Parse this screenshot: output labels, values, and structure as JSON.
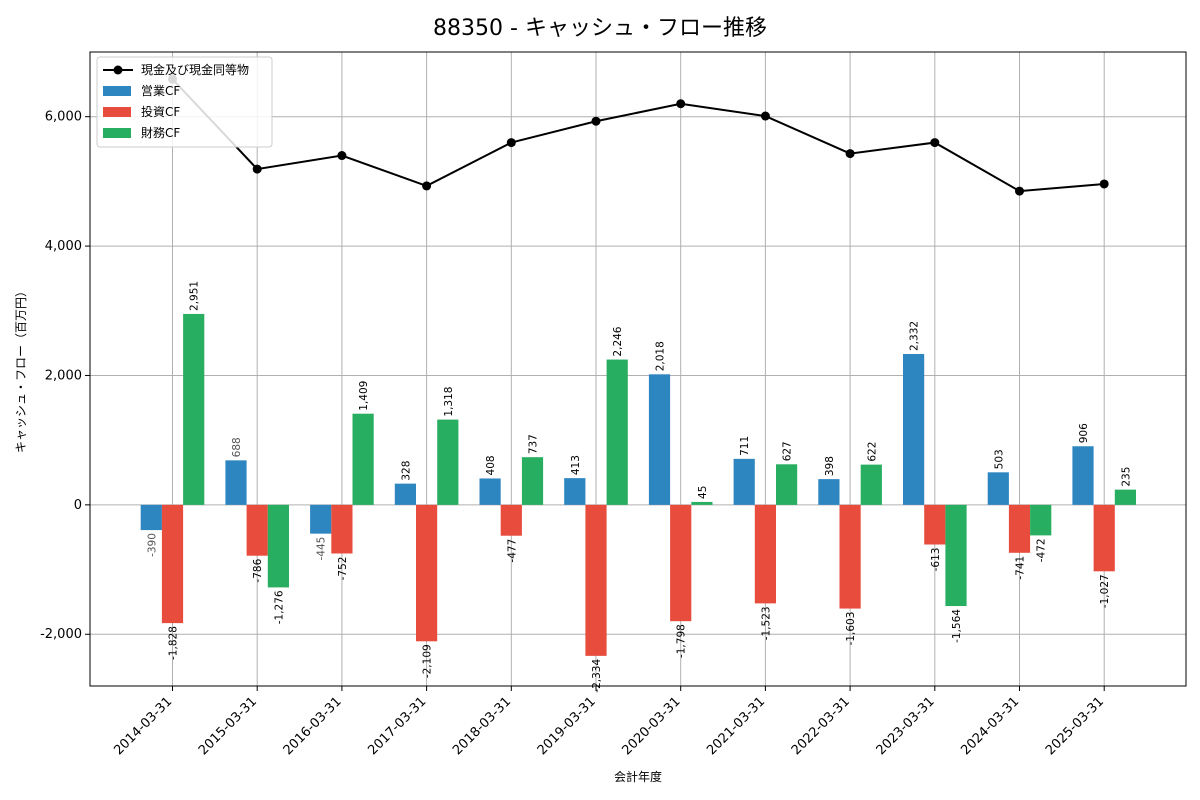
{
  "chart_data": {
    "type": "bar",
    "title": "88350 - キャッシュ・フロー推移",
    "xlabel": "会計年度",
    "ylabel": "キャッシュ・フロー（百万円）",
    "ylim": [
      -2800,
      7000
    ],
    "yticks": [
      -2000,
      0,
      2000,
      4000,
      6000
    ],
    "ytick_labels": [
      "-2,000",
      "0",
      "2,000",
      "4,000",
      "6,000"
    ],
    "grid": true,
    "legend_position": "top-left",
    "categories": [
      "2014-03-31",
      "2015-03-31",
      "2016-03-31",
      "2017-03-31",
      "2018-03-31",
      "2019-03-31",
      "2020-03-31",
      "2021-03-31",
      "2022-03-31",
      "2023-03-31",
      "2024-03-31",
      "2025-03-31"
    ],
    "series": [
      {
        "name": "営業CF",
        "kind": "bar",
        "color": "#2e86c1",
        "values": [
          -390,
          688,
          -445,
          328,
          408,
          413,
          2018,
          711,
          398,
          2332,
          503,
          906
        ],
        "labels": [
          "-390",
          "688",
          "-445",
          "328",
          "408",
          "413",
          "2,018",
          "711",
          "398",
          "2,332",
          "503",
          "906"
        ]
      },
      {
        "name": "投資CF",
        "kind": "bar",
        "color": "#e74c3c",
        "values": [
          -1828,
          -786,
          -752,
          -2109,
          -477,
          -2334,
          -1798,
          -1523,
          -1603,
          -613,
          -741,
          -1027
        ],
        "labels": [
          "-1,828",
          "-786",
          "-752",
          "-2,109",
          "-477",
          "-2,334",
          "-1,798",
          "-1,523",
          "-1,603",
          "-613",
          "-741",
          "-1,027"
        ]
      },
      {
        "name": "財務CF",
        "kind": "bar",
        "color": "#27ae60",
        "values": [
          2951,
          -1276,
          1409,
          1318,
          737,
          2246,
          45,
          627,
          622,
          -1564,
          -472,
          235
        ],
        "labels": [
          "2,951",
          "-1,276",
          "1,409",
          "1,318",
          "737",
          "2,246",
          "45",
          "627",
          "622",
          "-1,564",
          "-472",
          "235"
        ]
      },
      {
        "name": "現金及び現金同等物",
        "kind": "line",
        "color": "#000000",
        "values": [
          6580,
          5190,
          5400,
          4930,
          5600,
          5930,
          6200,
          6010,
          5430,
          5600,
          4850,
          4960
        ]
      }
    ]
  }
}
